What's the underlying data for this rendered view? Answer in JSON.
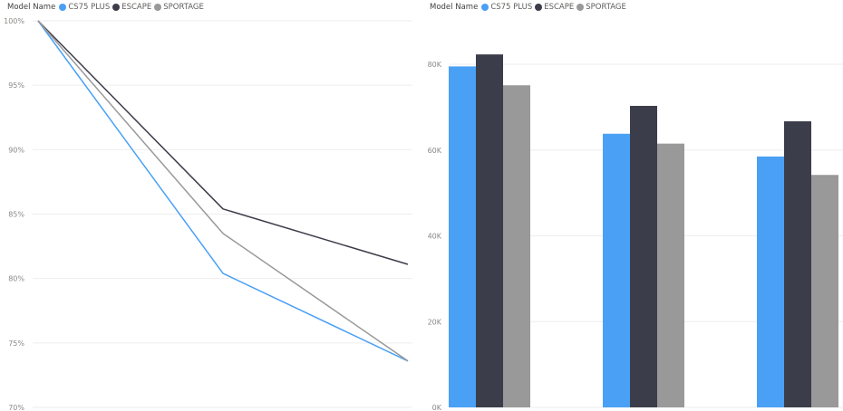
{
  "chart_data": [
    {
      "type": "line",
      "legend_title": "Model Name",
      "legend_position": "top-left",
      "grid": true,
      "ylim": [
        0.7,
        1.0
      ],
      "y_ticks": [
        {
          "value": 1.0,
          "label": "100%"
        },
        {
          "value": 0.95,
          "label": "95%"
        },
        {
          "value": 0.9,
          "label": "90%"
        },
        {
          "value": 0.85,
          "label": "85%"
        },
        {
          "value": 0.8,
          "label": "80%"
        },
        {
          "value": 0.75,
          "label": "75%"
        },
        {
          "value": 0.7,
          "label": "70%"
        }
      ],
      "x": [
        1,
        2,
        3
      ],
      "series": [
        {
          "name": "CS75 PLUS",
          "color": "#4aa0f5",
          "values": [
            1.0,
            0.804,
            0.736
          ]
        },
        {
          "name": "ESCAPE",
          "color": "#3c3d4a",
          "values": [
            1.0,
            0.854,
            0.811
          ]
        },
        {
          "name": "SPORTAGE",
          "color": "#999999",
          "values": [
            1.0,
            0.835,
            0.736
          ]
        }
      ]
    },
    {
      "type": "bar",
      "legend_title": "Model Name",
      "legend_position": "top-left",
      "grid": true,
      "ylim": [
        0,
        80000
      ],
      "y_ticks": [
        {
          "value": 0,
          "label": "0K"
        },
        {
          "value": 20000,
          "label": "20K"
        },
        {
          "value": 40000,
          "label": "40K"
        },
        {
          "value": 60000,
          "label": "60K"
        },
        {
          "value": 80000,
          "label": "80K"
        }
      ],
      "categories": [
        "",
        "",
        ""
      ],
      "series": [
        {
          "name": "CS75 PLUS",
          "color": "#4aa0f5",
          "values": [
            79500,
            63800,
            58500
          ]
        },
        {
          "name": "ESCAPE",
          "color": "#3c3d4a",
          "values": [
            82300,
            70300,
            66700
          ]
        },
        {
          "name": "SPORTAGE",
          "color": "#999999",
          "values": [
            75100,
            61500,
            54200
          ]
        }
      ]
    }
  ]
}
